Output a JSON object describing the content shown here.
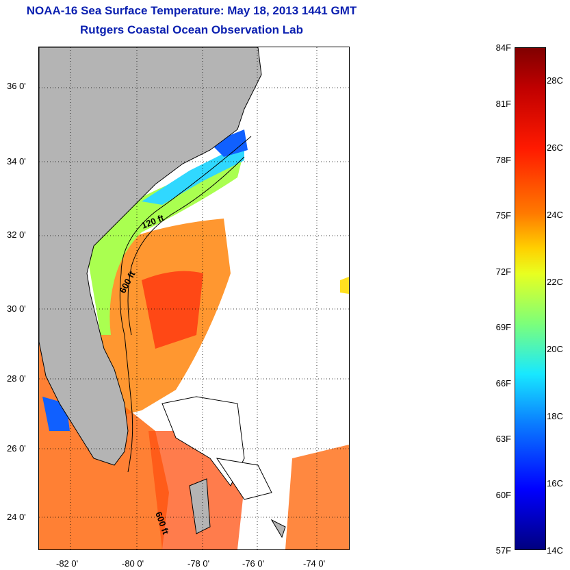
{
  "title": "NOAA-16 Sea Surface Temperature:  May 18, 2013 1441 GMT",
  "subtitle": "Rutgers Coastal Ocean Observation Lab",
  "y_ticks": [
    "36 0'",
    "34 0'",
    "32 0'",
    "30 0'",
    "28 0'",
    "26 0'",
    "24 0'"
  ],
  "x_ticks": [
    "-82 0'",
    "-80 0'",
    "-78 0'",
    "-76 0'",
    "-74 0'"
  ],
  "contour_labels": [
    "120 ft",
    "600 ft",
    "600 ft"
  ],
  "colorbar": {
    "fahrenheit": [
      "84F",
      "81F",
      "78F",
      "75F",
      "72F",
      "69F",
      "66F",
      "63F",
      "60F",
      "57F"
    ],
    "celsius": [
      "28C",
      "26C",
      "24C",
      "22C",
      "20C",
      "18C",
      "16C",
      "14C"
    ]
  },
  "colors": {
    "title": "#0a1fb0",
    "land": "#b4b4b4",
    "warm": "#ff6a00",
    "cool": "#7cff5a",
    "cold": "#1060ff"
  }
}
